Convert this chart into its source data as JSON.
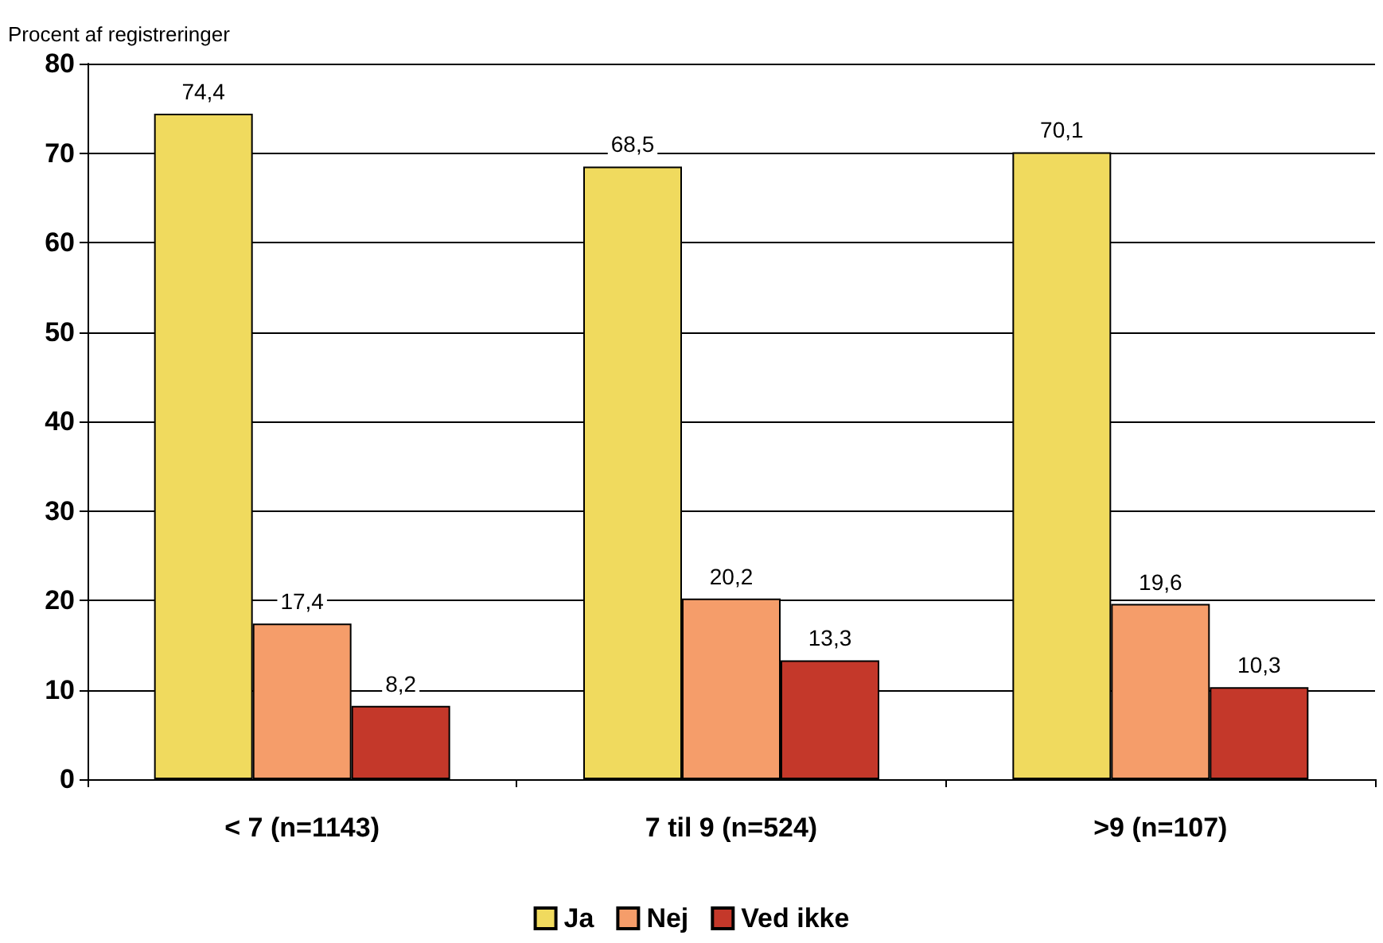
{
  "chart_data": {
    "type": "bar",
    "ylabel": "Procent af registreringer",
    "categories": [
      "< 7 (n=1143)",
      "7 til 9 (n=524)",
      ">9 (n=107)"
    ],
    "series": [
      {
        "name": "Ja",
        "color": "#f0da5e",
        "values": [
          74.4,
          68.5,
          70.1
        ],
        "value_labels": [
          "74,4",
          "68,5",
          "70,1"
        ]
      },
      {
        "name": "Nej",
        "color": "#f59d6a",
        "values": [
          17.4,
          20.2,
          19.6
        ],
        "value_labels": [
          "17,4",
          "20,2",
          "19,6"
        ]
      },
      {
        "name": "Ved ikke",
        "color": "#c4382a",
        "values": [
          8.2,
          13.3,
          10.3
        ],
        "value_labels": [
          "8,2",
          "13,3",
          "10,3"
        ]
      }
    ],
    "ylim": [
      0,
      80
    ],
    "yticks": [
      0,
      10,
      20,
      30,
      40,
      50,
      60,
      70,
      80
    ],
    "grid": "y",
    "legend": "bottom"
  }
}
